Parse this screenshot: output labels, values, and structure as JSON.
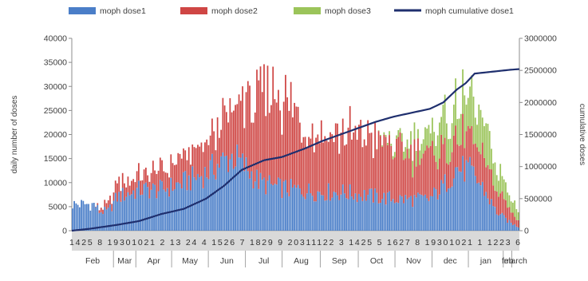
{
  "chart_data": {
    "type": "bar",
    "stacked": true,
    "secondary_axis": true,
    "legend_position": "top",
    "grid": false,
    "ylabel": "daily number of doses",
    "y2label": "cumulative doses",
    "ylim": [
      0,
      40000
    ],
    "y2lim": [
      0,
      3000000
    ],
    "yticks": [
      0,
      5000,
      10000,
      15000,
      20000,
      25000,
      30000,
      35000,
      40000
    ],
    "y2ticks": [
      0,
      500000,
      1000000,
      1500000,
      2000000,
      2500000,
      3000000
    ],
    "colors": {
      "dose1": "#4a7ec8",
      "dose2": "#cf4644",
      "dose3": "#9bc45a",
      "cumulative": "#1f2f6e",
      "axis": "#8c8c8c",
      "band": "#d9d9d9"
    },
    "day_ticks": "1425 8 19301021 2 13 24 4 1526 7 1829 9 20311122 3 1425 5 1627 8 19301021 1 1223 6",
    "months": [
      "Feb",
      "Mar",
      "Apr",
      "May",
      "Jun",
      "Jul",
      "Aug",
      "Sep",
      "Oct",
      "Nov",
      "dec",
      "jan",
      "feb",
      "march"
    ],
    "month_boundaries": [
      0.093,
      0.143,
      0.223,
      0.305,
      0.388,
      0.47,
      0.555,
      0.64,
      0.722,
      0.805,
      0.886,
      0.964,
      0.983
    ],
    "series": [
      {
        "name": "moph dose1",
        "key": "dose1",
        "knots": [
          [
            0,
            5500
          ],
          [
            0.05,
            5500
          ],
          [
            0.06,
            4000
          ],
          [
            0.08,
            4000
          ],
          [
            0.1,
            7000
          ],
          [
            0.15,
            8500
          ],
          [
            0.2,
            8500
          ],
          [
            0.25,
            10000
          ],
          [
            0.3,
            12000
          ],
          [
            0.33,
            14000
          ],
          [
            0.36,
            15500
          ],
          [
            0.39,
            13000
          ],
          [
            0.42,
            10000
          ],
          [
            0.46,
            9000
          ],
          [
            0.5,
            8500
          ],
          [
            0.55,
            8000
          ],
          [
            0.6,
            8000
          ],
          [
            0.65,
            7500
          ],
          [
            0.7,
            6800
          ],
          [
            0.75,
            6500
          ],
          [
            0.8,
            6500
          ],
          [
            0.83,
            9000
          ],
          [
            0.86,
            13000
          ],
          [
            0.89,
            12500
          ],
          [
            0.92,
            9000
          ],
          [
            0.95,
            4000
          ],
          [
            0.98,
            1800
          ],
          [
            1,
            800
          ]
        ],
        "amp": 0.25
      },
      {
        "name": "moph dose2",
        "key": "dose2",
        "knots": [
          [
            0,
            0
          ],
          [
            0.05,
            0
          ],
          [
            0.08,
            1500
          ],
          [
            0.1,
            3000
          ],
          [
            0.15,
            3000
          ],
          [
            0.2,
            4000
          ],
          [
            0.25,
            5000
          ],
          [
            0.3,
            6000
          ],
          [
            0.33,
            8000
          ],
          [
            0.36,
            10000
          ],
          [
            0.39,
            14000
          ],
          [
            0.42,
            17000
          ],
          [
            0.45,
            20000
          ],
          [
            0.48,
            18000
          ],
          [
            0.52,
            14000
          ],
          [
            0.55,
            13000
          ],
          [
            0.6,
            12500
          ],
          [
            0.65,
            12500
          ],
          [
            0.7,
            11500
          ],
          [
            0.75,
            9500
          ],
          [
            0.8,
            9000
          ],
          [
            0.83,
            7500
          ],
          [
            0.86,
            6500
          ],
          [
            0.9,
            6500
          ],
          [
            0.93,
            6000
          ],
          [
            0.96,
            4000
          ],
          [
            1,
            1500
          ]
        ],
        "amp": 0.35
      },
      {
        "name": "moph dose3",
        "key": "dose3",
        "knots": [
          [
            0,
            0
          ],
          [
            0.68,
            0
          ],
          [
            0.72,
            800
          ],
          [
            0.76,
            2500
          ],
          [
            0.8,
            4000
          ],
          [
            0.84,
            7000
          ],
          [
            0.87,
            8000
          ],
          [
            0.9,
            7500
          ],
          [
            0.93,
            6500
          ],
          [
            0.96,
            4500
          ],
          [
            1,
            2500
          ]
        ],
        "amp": 0.4
      },
      {
        "name": "moph cumulative dose1",
        "key": "cumulative",
        "axis": "secondary",
        "knots": [
          [
            0,
            0
          ],
          [
            0.04,
            30000
          ],
          [
            0.1,
            90000
          ],
          [
            0.15,
            150000
          ],
          [
            0.2,
            260000
          ],
          [
            0.25,
            340000
          ],
          [
            0.3,
            500000
          ],
          [
            0.34,
            700000
          ],
          [
            0.38,
            950000
          ],
          [
            0.43,
            1100000
          ],
          [
            0.47,
            1150000
          ],
          [
            0.52,
            1280000
          ],
          [
            0.56,
            1400000
          ],
          [
            0.6,
            1500000
          ],
          [
            0.64,
            1600000
          ],
          [
            0.68,
            1700000
          ],
          [
            0.72,
            1780000
          ],
          [
            0.76,
            1840000
          ],
          [
            0.8,
            1900000
          ],
          [
            0.83,
            2000000
          ],
          [
            0.86,
            2200000
          ],
          [
            0.88,
            2300000
          ],
          [
            0.9,
            2450000
          ],
          [
            0.94,
            2480000
          ],
          [
            0.98,
            2510000
          ],
          [
            1,
            2520000
          ]
        ]
      }
    ]
  }
}
